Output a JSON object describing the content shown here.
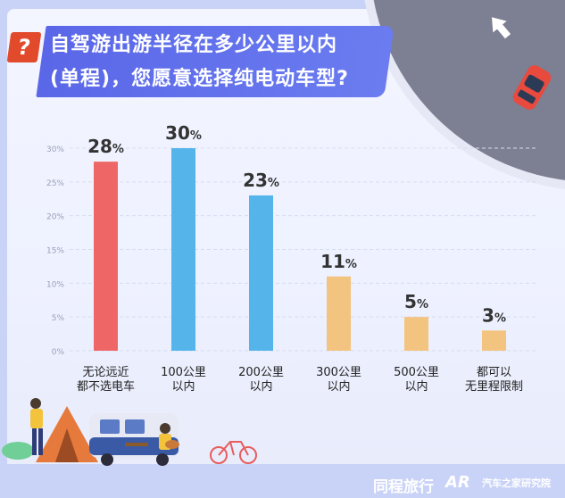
{
  "title": {
    "line1": "自驾游出游半径在多少公里以内",
    "line2": "(单程)，您愿意选择纯电动车型?"
  },
  "brands": {
    "brand1": "同程旅行",
    "ar": "AR",
    "brand2": "汽车之家研究院"
  },
  "colors": {
    "red": "#ee6766",
    "blue": "#55b5ea",
    "yellow": "#f3c47f",
    "title_bg": "#5a67e8",
    "qmark": "#e24a2c"
  },
  "chart_data": {
    "type": "bar",
    "categories": [
      [
        "无论远近",
        "都不选电车"
      ],
      [
        "100公里",
        "以内"
      ],
      [
        "200公里",
        "以内"
      ],
      [
        "300公里",
        "以内"
      ],
      [
        "500公里",
        "以内"
      ],
      [
        "都可以",
        "无里程限制"
      ]
    ],
    "values": [
      28,
      30,
      23,
      11,
      5,
      3
    ],
    "value_labels": [
      "28%",
      "30%",
      "23%",
      "11%",
      "5%",
      "3%"
    ],
    "bar_colors": [
      "#ee6766",
      "#55b5ea",
      "#55b5ea",
      "#f3c47f",
      "#f3c47f",
      "#f3c47f"
    ],
    "yticks": [
      "0%",
      "5%",
      "10%",
      "15%",
      "20%",
      "25%",
      "30%"
    ],
    "ylim": [
      0,
      30
    ],
    "grid": true
  }
}
